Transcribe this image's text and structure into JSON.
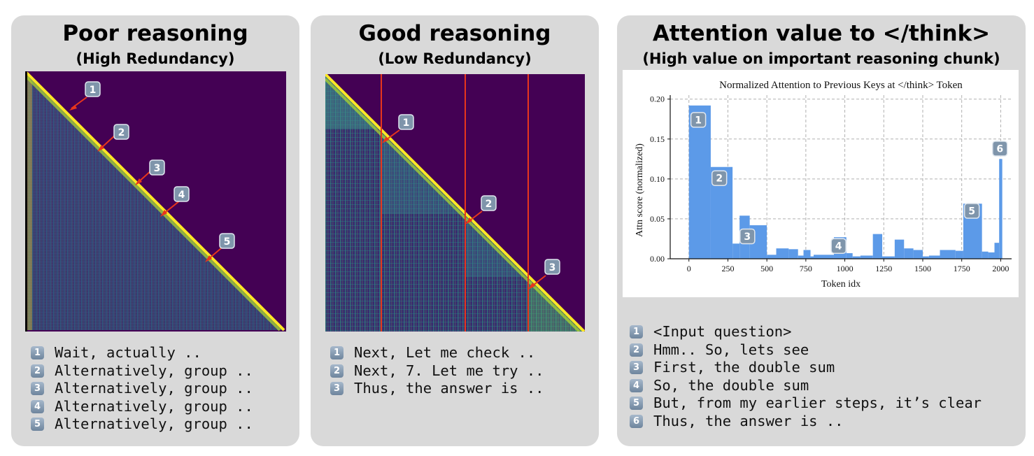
{
  "panels": [
    {
      "title": "Poor reasoning",
      "subtitle": "(High Redundancy)",
      "legend": [
        "Wait, actually ..",
        "Alternatively, group ..",
        "Alternatively, group ..",
        "Alternatively, group ..",
        "Alternatively, group .."
      ],
      "badges": [
        "1",
        "2",
        "3",
        "4",
        "5"
      ]
    },
    {
      "title": "Good reasoning",
      "subtitle": "(Low Redundancy)",
      "legend": [
        "Next, Let me check ..",
        "Next, 7. Let me try ..",
        "Thus, the answer is .."
      ],
      "badges": [
        "1",
        "2",
        "3"
      ]
    },
    {
      "title": "Attention value to </think>",
      "subtitle": "(High value on important reasoning chunk)",
      "legend": [
        "<Input question>",
        "Hmm.. So, lets see",
        "First, the double sum",
        "So, the double sum",
        "But, from my earlier steps, it’s clear",
        "Thus, the answer is .."
      ],
      "badges": [
        "1",
        "2",
        "3",
        "4",
        "5",
        "6"
      ]
    }
  ],
  "colors": {
    "panel_bg": "#d9d9d9",
    "heatmap_bg": "#440154",
    "heatmap_diag": "#fde725",
    "arrow": "#e8361c",
    "bar": "#5c9ae8",
    "badge": "#7f95ab"
  },
  "chart_data": {
    "type": "bar",
    "title": "Normalized Attention to Previous Keys at </think> Token",
    "xlabel": "Token idx",
    "ylabel": "Attn score (normalized)",
    "xlim": [
      -120,
      2070
    ],
    "ylim": [
      0,
      0.205
    ],
    "xticks": [
      0,
      250,
      500,
      750,
      1000,
      1250,
      1500,
      1750,
      2000
    ],
    "yticks": [
      "0.00",
      "0.05",
      "0.10",
      "0.15",
      "0.20"
    ],
    "grid": true,
    "bar_edges": [
      0,
      140,
      280,
      325,
      390,
      500,
      560,
      640,
      700,
      735,
      780,
      800,
      930,
      1010,
      1050,
      1100,
      1180,
      1240,
      1320,
      1380,
      1440,
      1500,
      1540,
      1610,
      1710,
      1760,
      1880,
      1920,
      1960,
      1990,
      2010
    ],
    "bar_values": [
      0.192,
      0.115,
      0.019,
      0.054,
      0.042,
      0.005,
      0.013,
      0.012,
      0.004,
      0.011,
      0.003,
      0.005,
      0.027,
      0.007,
      0.003,
      0.004,
      0.031,
      0.003,
      0.024,
      0.013,
      0.011,
      0.003,
      0.004,
      0.011,
      0.01,
      0.069,
      0.009,
      0.008,
      0.02,
      0.125
    ],
    "annotations": [
      {
        "label": "1",
        "x": 60,
        "y": 0.174
      },
      {
        "label": "2",
        "x": 195,
        "y": 0.101
      },
      {
        "label": "3",
        "x": 375,
        "y": 0.028
      },
      {
        "label": "4",
        "x": 960,
        "y": 0.016
      },
      {
        "label": "5",
        "x": 1815,
        "y": 0.06
      },
      {
        "label": "6",
        "x": 1995,
        "y": 0.138
      }
    ]
  }
}
